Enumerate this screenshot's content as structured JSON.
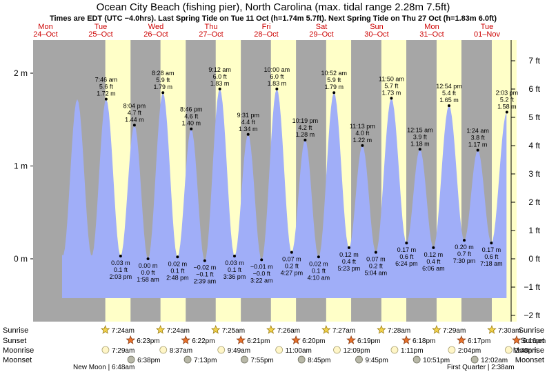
{
  "title": "Ocean City Beach (fishing pier), North Carolina (max. tidal range 2.28m 7.5ft)",
  "subtitle": "Times are EDT (UTC −4.0hrs). Last Spring Tide on Tue 11 Oct (h=1.74m 5.7ft). Next Spring Tide on Thu 27 Oct (h=1.83m 6.0ft)",
  "colors": {
    "water": "#a0aef8",
    "day": "#ffffc8",
    "night": "#a6a6a6",
    "day_label": "#cc0000"
  },
  "chart_data": {
    "type": "area",
    "time_range": [
      "2022-10-24 00:00",
      "2022-11-01 23:59"
    ],
    "y_left": {
      "unit": "m",
      "ylim": [
        -0.4,
        2.3
      ],
      "ticks": [
        {
          "v": 0,
          "label": "0 m"
        },
        {
          "v": 1,
          "label": "1 m"
        },
        {
          "v": 2,
          "label": "2 m"
        }
      ]
    },
    "y_right": {
      "unit": "ft",
      "ticks": [
        {
          "v": 7,
          "label": "7 ft"
        },
        {
          "v": 6,
          "label": "6 ft"
        },
        {
          "v": 5,
          "label": "5 ft"
        },
        {
          "v": 4,
          "label": "4 ft"
        },
        {
          "v": 3,
          "label": "3 ft"
        },
        {
          "v": 2,
          "label": "2 ft"
        },
        {
          "v": 1,
          "label": "1 ft"
        },
        {
          "v": 0,
          "label": "0 ft"
        },
        {
          "v": -1,
          "label": "−1 ft"
        },
        {
          "v": -2,
          "label": "−2 ft"
        }
      ]
    },
    "days": [
      {
        "dow": "Mon",
        "date": "24–Oct"
      },
      {
        "dow": "Tue",
        "date": "25–Oct"
      },
      {
        "dow": "Wed",
        "date": "26–Oct"
      },
      {
        "dow": "Thu",
        "date": "27–Oct"
      },
      {
        "dow": "Fri",
        "date": "28–Oct"
      },
      {
        "dow": "Sat",
        "date": "29–Oct"
      },
      {
        "dow": "Sun",
        "date": "30–Oct"
      },
      {
        "dow": "Mon",
        "date": "31–Oct"
      },
      {
        "dow": "Tue",
        "date": "01–Nov"
      }
    ],
    "tides": [
      {
        "t": "2022-10-25 07:46",
        "time": "7:46 am",
        "ft": "5.6 ft",
        "m": "1.72 m",
        "h": 1.72,
        "type": "high"
      },
      {
        "t": "2022-10-25 14:03",
        "time": "2:03 pm",
        "ft": "0.1 ft",
        "m": "0.03 m",
        "h": 0.03,
        "type": "low"
      },
      {
        "t": "2022-10-25 20:04",
        "time": "8:04 pm",
        "ft": "4.7 ft",
        "m": "1.44 m",
        "h": 1.44,
        "type": "high"
      },
      {
        "t": "2022-10-26 01:58",
        "time": "1:58 am",
        "ft": "0.0 ft",
        "m": "0.00 m",
        "h": 0.0,
        "type": "low"
      },
      {
        "t": "2022-10-26 08:28",
        "time": "8:28 am",
        "ft": "5.9 ft",
        "m": "1.79 m",
        "h": 1.79,
        "type": "high"
      },
      {
        "t": "2022-10-26 14:48",
        "time": "2:48 pm",
        "ft": "0.1 ft",
        "m": "0.02 m",
        "h": 0.02,
        "type": "low"
      },
      {
        "t": "2022-10-26 20:46",
        "time": "8:46 pm",
        "ft": "4.6 ft",
        "m": "1.40 m",
        "h": 1.4,
        "type": "high"
      },
      {
        "t": "2022-10-27 02:39",
        "time": "2:39 am",
        "ft": "−0.1 ft",
        "m": "−0.02 m",
        "h": -0.02,
        "type": "low"
      },
      {
        "t": "2022-10-27 09:12",
        "time": "9:12 am",
        "ft": "6.0 ft",
        "m": "1.83 m",
        "h": 1.83,
        "type": "high"
      },
      {
        "t": "2022-10-27 15:36",
        "time": "3:36 pm",
        "ft": "0.1 ft",
        "m": "0.03 m",
        "h": 0.03,
        "type": "low"
      },
      {
        "t": "2022-10-27 21:31",
        "time": "9:31 pm",
        "ft": "4.4 ft",
        "m": "1.34 m",
        "h": 1.34,
        "type": "high"
      },
      {
        "t": "2022-10-28 03:22",
        "time": "3:22 am",
        "ft": "−0.0 ft",
        "m": "−0.01 m",
        "h": -0.01,
        "type": "low"
      },
      {
        "t": "2022-10-28 10:00",
        "time": "10:00 am",
        "ft": "6.0 ft",
        "m": "1.83 m",
        "h": 1.83,
        "type": "high"
      },
      {
        "t": "2022-10-28 16:27",
        "time": "4:27 pm",
        "ft": "0.2 ft",
        "m": "0.07 m",
        "h": 0.07,
        "type": "low"
      },
      {
        "t": "2022-10-28 22:19",
        "time": "10:19 pm",
        "ft": "4.2 ft",
        "m": "1.28 m",
        "h": 1.28,
        "type": "high"
      },
      {
        "t": "2022-10-29 04:10",
        "time": "4:10 am",
        "ft": "0.1 ft",
        "m": "0.02 m",
        "h": 0.02,
        "type": "low"
      },
      {
        "t": "2022-10-29 10:52",
        "time": "10:52 am",
        "ft": "5.9 ft",
        "m": "1.79 m",
        "h": 1.79,
        "type": "high"
      },
      {
        "t": "2022-10-29 17:23",
        "time": "5:23 pm",
        "ft": "0.4 ft",
        "m": "0.12 m",
        "h": 0.12,
        "type": "low"
      },
      {
        "t": "2022-10-29 23:13",
        "time": "11:13 pm",
        "ft": "4.0 ft",
        "m": "1.22 m",
        "h": 1.22,
        "type": "high"
      },
      {
        "t": "2022-10-30 05:04",
        "time": "5:04 am",
        "ft": "0.2 ft",
        "m": "0.07 m",
        "h": 0.07,
        "type": "low"
      },
      {
        "t": "2022-10-30 11:50",
        "time": "11:50 am",
        "ft": "5.7 ft",
        "m": "1.73 m",
        "h": 1.73,
        "type": "high"
      },
      {
        "t": "2022-10-30 18:24",
        "time": "6:24 pm",
        "ft": "0.6 ft",
        "m": "0.17 m",
        "h": 0.17,
        "type": "low"
      },
      {
        "t": "2022-10-31 00:15",
        "time": "12:15 am",
        "ft": "3.9 ft",
        "m": "1.18 m",
        "h": 1.18,
        "type": "high"
      },
      {
        "t": "2022-10-31 06:06",
        "time": "6:06 am",
        "ft": "0.4 ft",
        "m": "0.12 m",
        "h": 0.12,
        "type": "low"
      },
      {
        "t": "2022-10-31 12:54",
        "time": "12:54 pm",
        "ft": "5.4 ft",
        "m": "1.65 m",
        "h": 1.65,
        "type": "high"
      },
      {
        "t": "2022-10-31 19:30",
        "time": "7:30 pm",
        "ft": "0.7 ft",
        "m": "0.20 m",
        "h": 0.2,
        "type": "low"
      },
      {
        "t": "2022-11-01 01:24",
        "time": "1:24 am",
        "ft": "3.8 ft",
        "m": "1.17 m",
        "h": 1.17,
        "type": "high"
      },
      {
        "t": "2022-11-01 07:18",
        "time": "7:18 am",
        "ft": "0.6 ft",
        "m": "0.17 m",
        "h": 0.17,
        "type": "low"
      },
      {
        "t": "2022-11-01 14:03",
        "time": "2:03 pm",
        "ft": "5.2 ft",
        "m": "1.58 m",
        "h": 1.58,
        "type": "high"
      }
    ],
    "daylight": [
      {
        "sunrise": "2022-10-25 07:24",
        "sunset": "2022-10-25 18:23"
      },
      {
        "sunrise": "2022-10-26 07:24",
        "sunset": "2022-10-26 18:22"
      },
      {
        "sunrise": "2022-10-27 07:25",
        "sunset": "2022-10-27 18:21"
      },
      {
        "sunrise": "2022-10-28 07:26",
        "sunset": "2022-10-28 18:20"
      },
      {
        "sunrise": "2022-10-29 07:27",
        "sunset": "2022-10-29 18:19"
      },
      {
        "sunrise": "2022-10-30 07:28",
        "sunset": "2022-10-30 18:18"
      },
      {
        "sunrise": "2022-10-31 07:29",
        "sunset": "2022-10-31 18:17"
      },
      {
        "sunrise": "2022-11-01 07:30",
        "sunset": "2022-11-01 18:16"
      }
    ],
    "rows": {
      "sunrise_label": "Sunrise",
      "sunset_label": "Sunset",
      "moonrise_label": "Moonrise",
      "moonset_label": "Moonset",
      "sunrise": [
        {
          "t": "2022-10-25 07:24",
          "label": "7:24am"
        },
        {
          "t": "2022-10-26 07:24",
          "label": "7:24am"
        },
        {
          "t": "2022-10-27 07:25",
          "label": "7:25am"
        },
        {
          "t": "2022-10-28 07:26",
          "label": "7:26am"
        },
        {
          "t": "2022-10-29 07:27",
          "label": "7:27am"
        },
        {
          "t": "2022-10-30 07:28",
          "label": "7:28am"
        },
        {
          "t": "2022-10-31 07:29",
          "label": "7:29am"
        },
        {
          "t": "2022-11-01 07:30",
          "label": "7:30am"
        }
      ],
      "sunset": [
        {
          "t": "2022-10-25 18:23",
          "label": "6:23pm"
        },
        {
          "t": "2022-10-26 18:22",
          "label": "6:22pm"
        },
        {
          "t": "2022-10-27 18:21",
          "label": "6:21pm"
        },
        {
          "t": "2022-10-28 18:20",
          "label": "6:20pm"
        },
        {
          "t": "2022-10-29 18:19",
          "label": "6:19pm"
        },
        {
          "t": "2022-10-30 18:18",
          "label": "6:18pm"
        },
        {
          "t": "2022-10-31 18:17",
          "label": "6:17pm"
        },
        {
          "t": "2022-11-01 18:16",
          "label": "6:16pm"
        }
      ],
      "moonrise": [
        {
          "t": "2022-10-25 07:29",
          "label": "7:29am"
        },
        {
          "t": "2022-10-26 08:37",
          "label": "8:37am"
        },
        {
          "t": "2022-10-27 09:49",
          "label": "9:49am"
        },
        {
          "t": "2022-10-28 11:00",
          "label": "11:00am"
        },
        {
          "t": "2022-10-29 12:09",
          "label": "12:09pm"
        },
        {
          "t": "2022-10-30 13:11",
          "label": "1:11pm"
        },
        {
          "t": "2022-10-31 14:04",
          "label": "2:04pm"
        },
        {
          "t": "2022-11-01 14:48",
          "label": "2:48pm"
        }
      ],
      "moonset": [
        {
          "t": "2022-10-25 18:38",
          "label": "6:38pm"
        },
        {
          "t": "2022-10-26 19:13",
          "label": "7:13pm"
        },
        {
          "t": "2022-10-27 19:55",
          "label": "7:55pm"
        },
        {
          "t": "2022-10-28 20:45",
          "label": "8:45pm"
        },
        {
          "t": "2022-10-29 21:45",
          "label": "9:45pm"
        },
        {
          "t": "2022-10-30 22:51",
          "label": "10:51pm"
        },
        {
          "t": "2022-10-31 24:02",
          "label": "12:02am"
        }
      ],
      "moon_phases": [
        {
          "t": "2022-10-25 06:48",
          "label": "New Moon | 6:48am"
        },
        {
          "t": "2022-11-01 02:38",
          "label": "First Quarter | 2:38am"
        }
      ]
    }
  }
}
